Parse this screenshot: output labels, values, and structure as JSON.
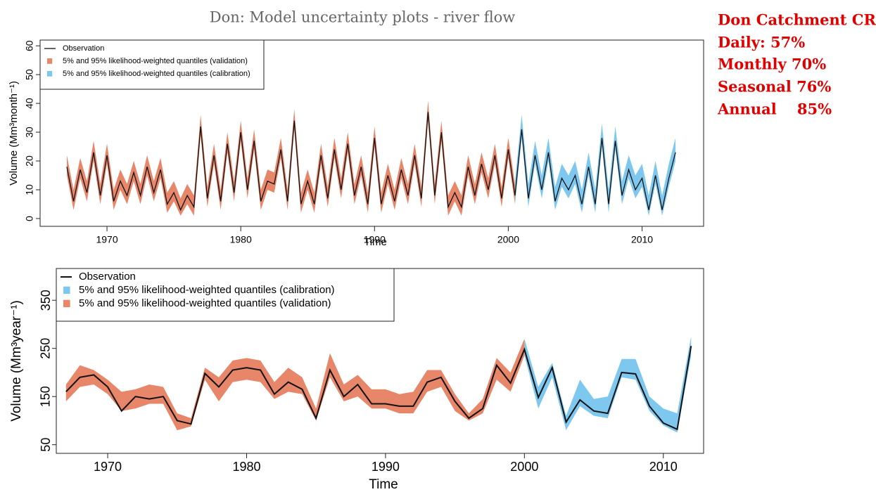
{
  "title": "Don: Model uncertainty plots - river flow",
  "side_note": [
    "Don Catchment CR",
    "Daily: 57%",
    "Monthly 70%",
    "Seasonal 76%",
    "Annual    85%"
  ],
  "chart_data": [
    {
      "type": "band-line",
      "x_label": "Time",
      "y_label": "Volume (Mm³month⁻¹)",
      "x": [
        1967,
        1967.5,
        1968,
        1968.5,
        1969,
        1969.5,
        1970,
        1970.5,
        1971,
        1971.5,
        1972,
        1972.5,
        1973,
        1973.5,
        1974,
        1974.5,
        1975,
        1975.5,
        1976,
        1976.5,
        1977,
        1977.5,
        1978,
        1978.5,
        1979,
        1979.5,
        1980,
        1980.5,
        1981,
        1981.5,
        1982,
        1982.5,
        1983,
        1983.5,
        1984,
        1984.5,
        1985,
        1985.5,
        1986,
        1986.5,
        1987,
        1987.5,
        1988,
        1988.5,
        1989,
        1989.5,
        1990,
        1990.5,
        1991,
        1991.5,
        1992,
        1992.5,
        1993,
        1993.5,
        1994,
        1994.5,
        1995,
        1995.5,
        1996,
        1996.5,
        1997,
        1997.5,
        1998,
        1998.5,
        1999,
        1999.5,
        2000,
        2000.5,
        2001,
        2001.5,
        2002,
        2002.5,
        2003,
        2003.5,
        2004,
        2004.5,
        2005,
        2005.5,
        2006,
        2006.5,
        2007,
        2007.5,
        2008,
        2008.5,
        2009,
        2009.5,
        2010,
        2010.5,
        2011,
        2011.5,
        2012,
        2012.5
      ],
      "xlim": [
        1965,
        2014.6
      ],
      "xticks": [
        1970,
        1980,
        1990,
        2000,
        2010
      ],
      "ylim": [
        -2.7,
        62
      ],
      "yticks": [
        0,
        10,
        20,
        30,
        40,
        50,
        60
      ],
      "series": [
        {
          "name": "Observation",
          "color": "#111111",
          "values": [
            18,
            6,
            17,
            9,
            23,
            8,
            22,
            6,
            13,
            8,
            16,
            8,
            18,
            9,
            17,
            5,
            9,
            3,
            8,
            4,
            32,
            7,
            22,
            6,
            26,
            9,
            30,
            10,
            27,
            6,
            13,
            12,
            24,
            6,
            34,
            5,
            13,
            5,
            22,
            7,
            24,
            10,
            26,
            8,
            18,
            5,
            28,
            5,
            15,
            6,
            17,
            8,
            22,
            7,
            37,
            8,
            30,
            4,
            9,
            4,
            18,
            8,
            19,
            10,
            22,
            7,
            24,
            8,
            31,
            7,
            22,
            10,
            23,
            6,
            14,
            10,
            15,
            5,
            18,
            5,
            28,
            5,
            27,
            8,
            17,
            10,
            14,
            3,
            15,
            3,
            14,
            23
          ]
        },
        {
          "name": "5% and 95% likelihood-weighted quantiles (validation)",
          "color": "#e8866a",
          "upper": [
            22,
            10,
            21,
            13,
            27,
            12,
            26,
            10,
            17,
            12,
            20,
            12,
            22,
            13,
            21,
            9,
            13,
            7,
            12,
            8,
            36,
            11,
            26,
            10,
            30,
            13,
            34,
            14,
            31,
            10,
            17,
            16,
            28,
            10,
            38,
            9,
            17,
            9,
            26,
            11,
            28,
            14,
            30,
            12,
            22,
            9,
            32,
            9,
            19,
            10,
            21,
            12,
            26,
            11,
            41,
            12,
            34,
            8,
            13,
            8,
            22,
            12,
            23,
            14,
            26,
            11,
            28,
            12,
            null,
            null,
            null,
            null,
            null,
            null,
            null,
            null,
            null,
            null,
            null,
            null,
            null,
            null,
            null,
            null,
            null,
            null,
            null,
            null,
            null,
            null,
            null,
            null
          ],
          "lower": [
            15,
            3,
            14,
            6,
            20,
            5,
            19,
            3,
            10,
            5,
            13,
            5,
            15,
            6,
            14,
            2,
            6,
            1,
            5,
            1,
            29,
            4,
            19,
            3,
            23,
            6,
            27,
            7,
            24,
            3,
            10,
            9,
            21,
            3,
            31,
            2,
            10,
            2,
            19,
            4,
            21,
            7,
            23,
            5,
            15,
            2,
            25,
            2,
            12,
            3,
            14,
            5,
            19,
            4,
            34,
            5,
            27,
            1,
            6,
            1,
            15,
            5,
            16,
            7,
            19,
            4,
            21,
            5,
            null,
            null,
            null,
            null,
            null,
            null,
            null,
            null,
            null,
            null,
            null,
            null,
            null,
            null,
            null,
            null,
            null,
            null,
            null,
            null,
            null,
            null,
            null,
            null
          ]
        },
        {
          "name": "5% and 95% likelihood-weighted quantiles (calibration)",
          "color": "#7ec8f0",
          "upper": [
            null,
            null,
            null,
            null,
            null,
            null,
            null,
            null,
            null,
            null,
            null,
            null,
            null,
            null,
            null,
            null,
            null,
            null,
            null,
            null,
            null,
            null,
            null,
            null,
            null,
            null,
            null,
            null,
            null,
            null,
            null,
            null,
            null,
            null,
            null,
            null,
            null,
            null,
            null,
            null,
            null,
            null,
            null,
            null,
            null,
            null,
            null,
            null,
            null,
            null,
            null,
            null,
            null,
            null,
            null,
            null,
            null,
            null,
            null,
            null,
            null,
            null,
            null,
            null,
            null,
            null,
            null,
            13,
            36,
            12,
            27,
            15,
            28,
            11,
            19,
            15,
            20,
            10,
            23,
            10,
            33,
            10,
            32,
            13,
            22,
            15,
            19,
            8,
            20,
            8,
            19,
            28
          ],
          "lower": [
            null,
            null,
            null,
            null,
            null,
            null,
            null,
            null,
            null,
            null,
            null,
            null,
            null,
            null,
            null,
            null,
            null,
            null,
            null,
            null,
            null,
            null,
            null,
            null,
            null,
            null,
            null,
            null,
            null,
            null,
            null,
            null,
            null,
            null,
            null,
            null,
            null,
            null,
            null,
            null,
            null,
            null,
            null,
            null,
            null,
            null,
            null,
            null,
            null,
            null,
            null,
            null,
            null,
            null,
            null,
            null,
            null,
            null,
            null,
            null,
            null,
            null,
            null,
            null,
            null,
            null,
            null,
            5,
            28,
            4,
            19,
            7,
            20,
            3,
            11,
            7,
            12,
            2,
            15,
            2,
            25,
            2,
            24,
            5,
            14,
            7,
            11,
            1,
            12,
            1,
            11,
            20
          ]
        }
      ]
    },
    {
      "type": "band-line",
      "x_label": "Time",
      "y_label": "Volume (Mm³year⁻¹)",
      "x": [
        1967,
        1968,
        1969,
        1970,
        1971,
        1972,
        1973,
        1974,
        1975,
        1976,
        1977,
        1978,
        1979,
        1980,
        1981,
        1982,
        1983,
        1984,
        1985,
        1986,
        1987,
        1988,
        1989,
        1990,
        1991,
        1992,
        1993,
        1994,
        1995,
        1996,
        1997,
        1998,
        1999,
        2000,
        2001,
        2002,
        2003,
        2004,
        2005,
        2006,
        2007,
        2008,
        2009,
        2010,
        2011,
        2012
      ],
      "xlim": [
        1966.3,
        2012.9
      ],
      "xticks": [
        1970,
        1980,
        1990,
        2000,
        2010
      ],
      "ylim": [
        32,
        416
      ],
      "yticks": [
        50,
        150,
        250,
        350
      ],
      "series": [
        {
          "name": "Observation",
          "color": "#111111",
          "values": [
            160,
            190,
            195,
            170,
            120,
            150,
            145,
            150,
            100,
            93,
            198,
            170,
            205,
            210,
            205,
            155,
            180,
            165,
            105,
            205,
            150,
            175,
            135,
            135,
            130,
            130,
            180,
            190,
            140,
            105,
            125,
            215,
            178,
            248,
            148,
            210,
            97,
            143,
            120,
            115,
            200,
            197,
            130,
            95,
            82,
            255
          ]
        },
        {
          "name": "5% and 95% likelihood-weighted quantiles (calibration)",
          "color": "#7ec8f0",
          "upper": [
            null,
            null,
            null,
            null,
            null,
            null,
            null,
            null,
            null,
            null,
            null,
            null,
            null,
            null,
            null,
            null,
            null,
            null,
            null,
            null,
            null,
            null,
            null,
            null,
            null,
            null,
            null,
            null,
            null,
            null,
            null,
            null,
            null,
            270,
            170,
            220,
            110,
            185,
            145,
            150,
            228,
            228,
            150,
            125,
            115,
            275
          ],
          "lower": [
            null,
            null,
            null,
            null,
            null,
            null,
            null,
            null,
            null,
            null,
            null,
            null,
            null,
            null,
            null,
            null,
            null,
            null,
            null,
            null,
            null,
            null,
            null,
            null,
            null,
            null,
            null,
            null,
            null,
            null,
            null,
            null,
            null,
            235,
            125,
            190,
            80,
            130,
            110,
            105,
            190,
            185,
            120,
            90,
            75,
            235
          ]
        },
        {
          "name": "5% and 95% likelihood-weighted quantiles (validation)",
          "color": "#e8866a",
          "upper": [
            175,
            215,
            205,
            185,
            160,
            165,
            175,
            170,
            115,
            105,
            210,
            190,
            225,
            230,
            225,
            180,
            210,
            190,
            125,
            240,
            175,
            195,
            165,
            165,
            155,
            160,
            205,
            205,
            155,
            115,
            145,
            230,
            200,
            270,
            null,
            null,
            null,
            null,
            null,
            null,
            null,
            null,
            null,
            null,
            null,
            null
          ],
          "lower": [
            140,
            170,
            175,
            155,
            120,
            125,
            135,
            135,
            80,
            88,
            185,
            140,
            180,
            185,
            180,
            145,
            160,
            155,
            100,
            190,
            140,
            150,
            125,
            125,
            115,
            115,
            160,
            170,
            120,
            100,
            115,
            185,
            160,
            235,
            null,
            null,
            null,
            null,
            null,
            null,
            null,
            null,
            null,
            null,
            null,
            null
          ]
        }
      ]
    }
  ]
}
